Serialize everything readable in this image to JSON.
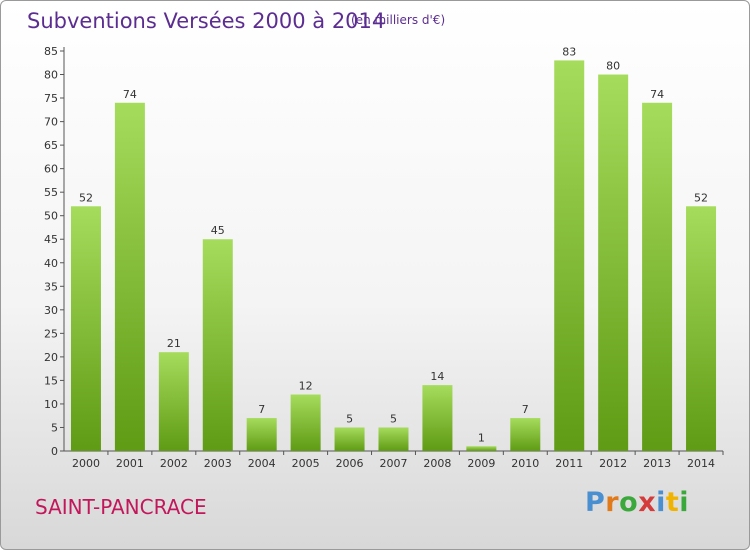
{
  "header": {
    "title": "Subventions Versées 2000 à 2014",
    "subtitle": "(en milliers d'€)"
  },
  "footer": {
    "location": "SAINT-PANCRACE",
    "logo_text": "Proxiti"
  },
  "colors": {
    "title": "#5c2d91",
    "location": "#c2185b",
    "bar_light": "#a6dc5c",
    "bar_dark": "#5f9b14",
    "logo": [
      "#4a8fd0",
      "#e07a1a",
      "#3aa83a",
      "#d43c3c",
      "#4a8fd0",
      "#f0b400",
      "#3aa83a"
    ]
  },
  "chart_data": {
    "type": "bar",
    "categories": [
      "2000",
      "2001",
      "2002",
      "2003",
      "2004",
      "2005",
      "2006",
      "2007",
      "2008",
      "2009",
      "2010",
      "2011",
      "2012",
      "2013",
      "2014"
    ],
    "values": [
      52,
      74,
      21,
      45,
      7,
      12,
      5,
      5,
      14,
      1,
      7,
      83,
      80,
      74,
      52
    ],
    "ylim": [
      0,
      85
    ],
    "yticks": [
      0,
      5,
      10,
      15,
      20,
      25,
      30,
      35,
      40,
      45,
      50,
      55,
      60,
      65,
      70,
      75,
      80,
      85
    ],
    "grid": false,
    "data_labels": true
  }
}
